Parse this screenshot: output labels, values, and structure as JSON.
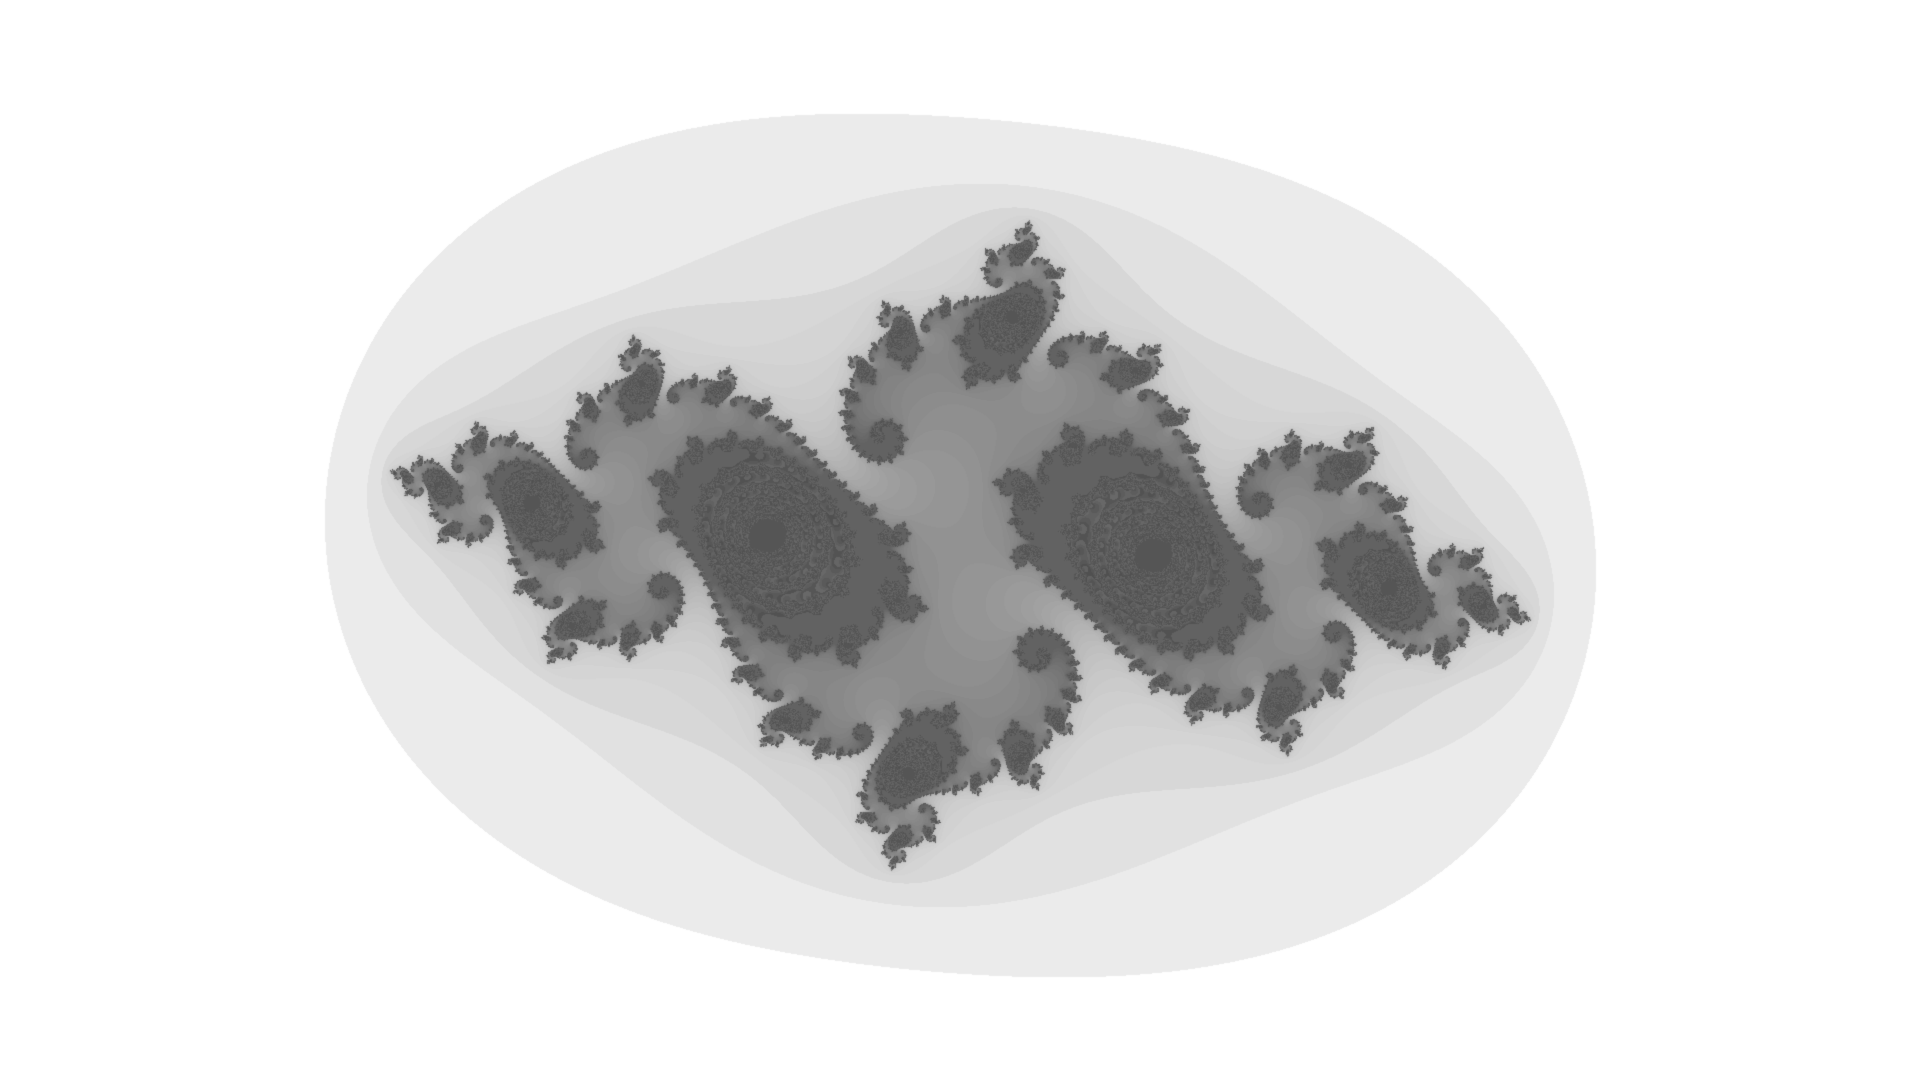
{
  "image": {
    "subject": "julia-set-fractal",
    "background_color": "#ffffff",
    "palette": {
      "outer_halo": "#ebebeb",
      "mid_halo": "#dddddd",
      "inner_halo": "#c4c4c4",
      "fractal_core": "#555555",
      "fractal_dark": "#3e3e3e"
    }
  }
}
